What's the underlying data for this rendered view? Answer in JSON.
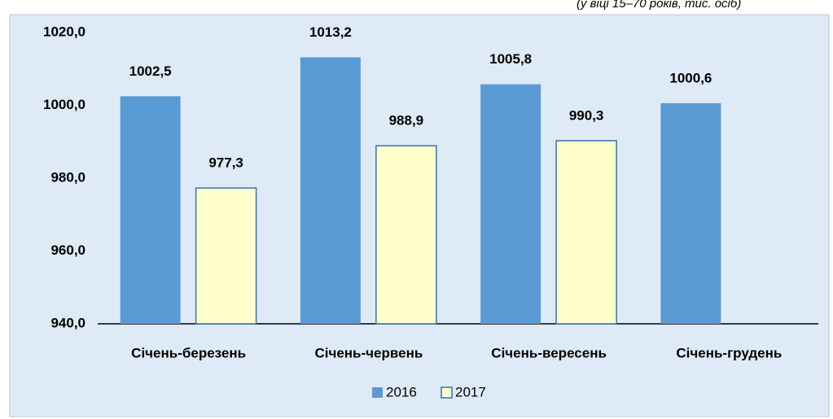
{
  "chart_data": {
    "type": "bar",
    "subtitle": "(у віці 15–70 років, тис. осіб)",
    "categories": [
      "Січень-березень",
      "Січень-червень",
      "Січень-вересень",
      "Січень-грудень"
    ],
    "series": [
      {
        "name": "2016",
        "color": "#5b9bd5",
        "values": [
          1002.5,
          1013.2,
          1005.8,
          1000.6
        ],
        "value_labels": [
          "1002,5",
          "1013,2",
          "1005,8",
          "1000,6"
        ]
      },
      {
        "name": "2017",
        "color": "#ffffcc",
        "values": [
          977.3,
          988.9,
          990.3,
          null
        ],
        "value_labels": [
          "977,3",
          "988,9",
          "990,3",
          null
        ]
      }
    ],
    "ylim": [
      940,
      1020
    ],
    "yticks": [
      {
        "value": 940,
        "label": "940,0"
      },
      {
        "value": 960,
        "label": "960,0"
      },
      {
        "value": 980,
        "label": "980,0"
      },
      {
        "value": 1000,
        "label": "1000,0"
      },
      {
        "value": 1020,
        "label": "1020,0"
      }
    ],
    "legend": "bottom"
  }
}
